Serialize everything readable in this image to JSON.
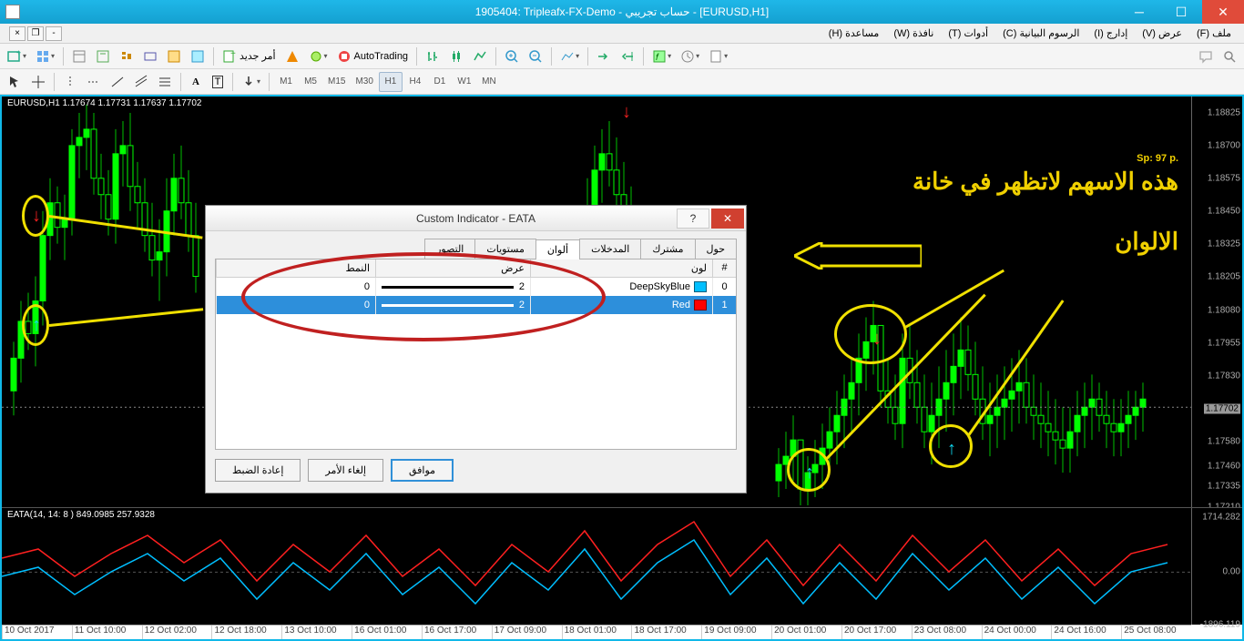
{
  "window": {
    "title": "1905404: Tripleafx-FX-Demo - حساب تجريبي - [EURUSD,H1]"
  },
  "menu": {
    "items": [
      "ملف (F)",
      "عرض (V)",
      "إدارج (I)",
      "الرسوم البيانية (C)",
      "أدوات (T)",
      "نافذة (W)",
      "مساعدة (H)"
    ]
  },
  "toolbar1": {
    "new_order": "أمر جديد",
    "autotrading": "AutoTrading"
  },
  "toolbar2": {
    "timeframes": [
      "M1",
      "M5",
      "M15",
      "M30",
      "H1",
      "H4",
      "D1",
      "W1",
      "MN"
    ],
    "active_tf": "H1"
  },
  "chart": {
    "label": "EURUSD,H1  1.17674 1.17731 1.17637 1.17702",
    "sp": "Sp: 97 p.",
    "y_ticks": [
      {
        "v": "1.18825",
        "p": 4
      },
      {
        "v": "1.18700",
        "p": 12
      },
      {
        "v": "1.18575",
        "p": 20
      },
      {
        "v": "1.18450",
        "p": 28
      },
      {
        "v": "1.18325",
        "p": 36
      },
      {
        "v": "1.18205",
        "p": 44
      },
      {
        "v": "1.18080",
        "p": 52
      },
      {
        "v": "1.17955",
        "p": 60
      },
      {
        "v": "1.17830",
        "p": 68
      },
      {
        "v": "1.17702",
        "p": 76,
        "current": true
      },
      {
        "v": "1.17580",
        "p": 84
      },
      {
        "v": "1.17460",
        "p": 90
      },
      {
        "v": "1.17335",
        "p": 95
      },
      {
        "v": "1.17210",
        "p": 100
      }
    ],
    "x_ticks": [
      "10 Oct 2017",
      "11 Oct 10:00",
      "12 Oct 02:00",
      "12 Oct 18:00",
      "13 Oct 10:00",
      "16 Oct 01:00",
      "16 Oct 17:00",
      "17 Oct 09:00",
      "18 Oct 01:00",
      "18 Oct 17:00",
      "19 Oct 09:00",
      "20 Oct 01:00",
      "20 Oct 17:00",
      "23 Oct 08:00",
      "24 Oct 00:00",
      "24 Oct 16:00",
      "25 Oct 08:00"
    ],
    "annot1": "هذه الاسهم لاتظهر في خانة",
    "annot2": "الالوان"
  },
  "indicator": {
    "label": "EATA(14, 14: 8 ) 849.0985 257.9328",
    "y_ticks": [
      {
        "v": "1714.282",
        "p": 8
      },
      {
        "v": "0.00",
        "p": 55
      },
      {
        "v": "-1896.119",
        "p": 100
      }
    ]
  },
  "dialog": {
    "title": "Custom Indicator - EATA",
    "tabs": [
      "حول",
      "مشترك",
      "المدخلات",
      "ألوان",
      "مستويات",
      "التصور"
    ],
    "active_tab": "ألوان",
    "head_num": "#",
    "head_color": "لون",
    "head_width": "عرض",
    "head_style": "النمط",
    "rows": [
      {
        "n": "0",
        "name": "DeepSkyBlue",
        "hex": "#00bfff",
        "w": "2",
        "s": "0"
      },
      {
        "n": "1",
        "name": "Red",
        "hex": "#ff0000",
        "w": "2",
        "s": "0",
        "sel": true
      }
    ],
    "btn_ok": "موافق",
    "btn_cancel": "إلغاء الأمر",
    "btn_reset": "إعادة الضبط"
  },
  "candles": {
    "up_color": "#00ff00",
    "down_color": "#00a000",
    "wick_color": "#00c000",
    "series": [
      {
        "x": 10,
        "o": 72,
        "h": 60,
        "l": 78,
        "c": 64
      },
      {
        "x": 18,
        "o": 64,
        "h": 50,
        "l": 70,
        "c": 55
      },
      {
        "x": 26,
        "o": 55,
        "h": 48,
        "l": 62,
        "c": 58
      },
      {
        "x": 34,
        "o": 58,
        "h": 44,
        "l": 66,
        "c": 50
      },
      {
        "x": 42,
        "o": 50,
        "h": 28,
        "l": 56,
        "c": 34
      },
      {
        "x": 50,
        "o": 34,
        "h": 20,
        "l": 40,
        "c": 26
      },
      {
        "x": 58,
        "o": 26,
        "h": 22,
        "l": 36,
        "c": 32
      },
      {
        "x": 66,
        "o": 32,
        "h": 24,
        "l": 40,
        "c": 30
      },
      {
        "x": 74,
        "o": 30,
        "h": 8,
        "l": 34,
        "c": 12
      },
      {
        "x": 82,
        "o": 12,
        "h": 4,
        "l": 20,
        "c": 10
      },
      {
        "x": 90,
        "o": 10,
        "h": 2,
        "l": 18,
        "c": 8
      },
      {
        "x": 98,
        "o": 8,
        "h": 4,
        "l": 24,
        "c": 20
      },
      {
        "x": 106,
        "o": 20,
        "h": 14,
        "l": 30,
        "c": 24
      },
      {
        "x": 114,
        "o": 24,
        "h": 18,
        "l": 34,
        "c": 30
      },
      {
        "x": 122,
        "o": 30,
        "h": 8,
        "l": 36,
        "c": 14
      },
      {
        "x": 130,
        "o": 14,
        "h": 6,
        "l": 22,
        "c": 12
      },
      {
        "x": 138,
        "o": 12,
        "h": 4,
        "l": 28,
        "c": 22
      },
      {
        "x": 146,
        "o": 22,
        "h": 16,
        "l": 32,
        "c": 26
      },
      {
        "x": 154,
        "o": 26,
        "h": 20,
        "l": 38,
        "c": 34
      },
      {
        "x": 162,
        "o": 34,
        "h": 26,
        "l": 44,
        "c": 40
      },
      {
        "x": 170,
        "o": 40,
        "h": 30,
        "l": 50,
        "c": 38
      },
      {
        "x": 178,
        "o": 38,
        "h": 20,
        "l": 44,
        "c": 28
      },
      {
        "x": 186,
        "o": 28,
        "h": 14,
        "l": 34,
        "c": 20
      },
      {
        "x": 194,
        "o": 20,
        "h": 12,
        "l": 30,
        "c": 26
      },
      {
        "x": 202,
        "o": 26,
        "h": 18,
        "l": 38,
        "c": 34
      },
      {
        "x": 210,
        "o": 34,
        "h": 26,
        "l": 48,
        "c": 44
      },
      {
        "x": 640,
        "o": 40,
        "h": 20,
        "l": 48,
        "c": 28
      },
      {
        "x": 648,
        "o": 28,
        "h": 12,
        "l": 36,
        "c": 18
      },
      {
        "x": 656,
        "o": 18,
        "h": 8,
        "l": 26,
        "c": 14
      },
      {
        "x": 664,
        "o": 14,
        "h": 6,
        "l": 22,
        "c": 18
      },
      {
        "x": 672,
        "o": 18,
        "h": 10,
        "l": 28,
        "c": 24
      },
      {
        "x": 680,
        "o": 24,
        "h": 16,
        "l": 34,
        "c": 30
      },
      {
        "x": 688,
        "o": 30,
        "h": 22,
        "l": 42,
        "c": 38
      },
      {
        "x": 850,
        "o": 94,
        "h": 86,
        "l": 98,
        "c": 90
      },
      {
        "x": 858,
        "o": 90,
        "h": 82,
        "l": 96,
        "c": 88
      },
      {
        "x": 866,
        "o": 88,
        "h": 78,
        "l": 94,
        "c": 84
      },
      {
        "x": 874,
        "o": 84,
        "h": 90,
        "l": 100,
        "c": 96
      },
      {
        "x": 882,
        "o": 96,
        "h": 88,
        "l": 100,
        "c": 92
      },
      {
        "x": 890,
        "o": 92,
        "h": 84,
        "l": 98,
        "c": 90
      },
      {
        "x": 898,
        "o": 90,
        "h": 80,
        "l": 96,
        "c": 86
      },
      {
        "x": 906,
        "o": 86,
        "h": 76,
        "l": 92,
        "c": 82
      },
      {
        "x": 914,
        "o": 82,
        "h": 72,
        "l": 90,
        "c": 78
      },
      {
        "x": 922,
        "o": 78,
        "h": 68,
        "l": 86,
        "c": 74
      },
      {
        "x": 930,
        "o": 74,
        "h": 64,
        "l": 82,
        "c": 70
      },
      {
        "x": 938,
        "o": 70,
        "h": 58,
        "l": 78,
        "c": 64
      },
      {
        "x": 946,
        "o": 64,
        "h": 54,
        "l": 72,
        "c": 60
      },
      {
        "x": 954,
        "o": 60,
        "h": 50,
        "l": 68,
        "c": 56
      },
      {
        "x": 962,
        "o": 56,
        "h": 60,
        "l": 76,
        "c": 72
      },
      {
        "x": 970,
        "o": 72,
        "h": 64,
        "l": 80,
        "c": 76
      },
      {
        "x": 978,
        "o": 76,
        "h": 68,
        "l": 84,
        "c": 80
      },
      {
        "x": 986,
        "o": 80,
        "h": 58,
        "l": 86,
        "c": 64
      },
      {
        "x": 994,
        "o": 64,
        "h": 56,
        "l": 74,
        "c": 70
      },
      {
        "x": 1002,
        "o": 70,
        "h": 62,
        "l": 80,
        "c": 76
      },
      {
        "x": 1010,
        "o": 76,
        "h": 68,
        "l": 86,
        "c": 82
      },
      {
        "x": 1018,
        "o": 82,
        "h": 70,
        "l": 90,
        "c": 78
      },
      {
        "x": 1026,
        "o": 78,
        "h": 66,
        "l": 86,
        "c": 74
      },
      {
        "x": 1034,
        "o": 74,
        "h": 62,
        "l": 82,
        "c": 70
      },
      {
        "x": 1042,
        "o": 70,
        "h": 58,
        "l": 78,
        "c": 66
      },
      {
        "x": 1050,
        "o": 66,
        "h": 54,
        "l": 74,
        "c": 62
      },
      {
        "x": 1058,
        "o": 62,
        "h": 56,
        "l": 72,
        "c": 68
      },
      {
        "x": 1066,
        "o": 68,
        "h": 60,
        "l": 78,
        "c": 74
      },
      {
        "x": 1074,
        "o": 74,
        "h": 66,
        "l": 84,
        "c": 80
      },
      {
        "x": 1082,
        "o": 80,
        "h": 70,
        "l": 88,
        "c": 78
      },
      {
        "x": 1090,
        "o": 78,
        "h": 68,
        "l": 86,
        "c": 76
      },
      {
        "x": 1098,
        "o": 76,
        "h": 66,
        "l": 84,
        "c": 74
      },
      {
        "x": 1106,
        "o": 74,
        "h": 64,
        "l": 82,
        "c": 72
      },
      {
        "x": 1114,
        "o": 72,
        "h": 62,
        "l": 80,
        "c": 70
      },
      {
        "x": 1122,
        "o": 70,
        "h": 64,
        "l": 80,
        "c": 76
      },
      {
        "x": 1130,
        "o": 76,
        "h": 68,
        "l": 84,
        "c": 78
      },
      {
        "x": 1138,
        "o": 78,
        "h": 70,
        "l": 86,
        "c": 80
      },
      {
        "x": 1146,
        "o": 80,
        "h": 72,
        "l": 88,
        "c": 82
      },
      {
        "x": 1154,
        "o": 82,
        "h": 74,
        "l": 90,
        "c": 84
      },
      {
        "x": 1162,
        "o": 84,
        "h": 76,
        "l": 92,
        "c": 86
      },
      {
        "x": 1170,
        "o": 86,
        "h": 76,
        "l": 92,
        "c": 82
      },
      {
        "x": 1178,
        "o": 82,
        "h": 72,
        "l": 88,
        "c": 78
      },
      {
        "x": 1186,
        "o": 78,
        "h": 70,
        "l": 86,
        "c": 76
      },
      {
        "x": 1194,
        "o": 76,
        "h": 68,
        "l": 84,
        "c": 74
      },
      {
        "x": 1202,
        "o": 74,
        "h": 70,
        "l": 82,
        "c": 78
      },
      {
        "x": 1210,
        "o": 78,
        "h": 72,
        "l": 86,
        "c": 80
      },
      {
        "x": 1218,
        "o": 80,
        "h": 74,
        "l": 88,
        "c": 82
      },
      {
        "x": 1226,
        "o": 82,
        "h": 74,
        "l": 88,
        "c": 80
      },
      {
        "x": 1234,
        "o": 80,
        "h": 72,
        "l": 86,
        "c": 78
      },
      {
        "x": 1242,
        "o": 78,
        "h": 72,
        "l": 84,
        "c": 76
      },
      {
        "x": 1250,
        "o": 76,
        "h": 70,
        "l": 82,
        "c": 74
      }
    ]
  },
  "ind_lines": {
    "red_color": "#ff2020",
    "blue_color": "#00bfff",
    "red": "0,55 40,45 80,75 120,50 160,30 200,60 240,35 280,80 320,40 360,70 400,30 440,75 480,45 520,85 560,40 600,70 640,25 680,80 720,40 760,15 800,75 840,35 880,85 920,40 960,80 1000,30 1040,70 1080,35 1120,80 1160,45 1200,85 1240,50 1280,40",
    "blue": "0,75 40,65 80,95 120,70 160,50 200,80 240,55 280,100 320,60 360,90 400,50 440,95 480,65 520,105 560,60 600,90 640,45 680,100 720,60 760,35 800,95 840,55 880,105 920,60 960,100 1000,50 1040,90 1080,55 1120,100 1160,65 1200,105 1240,70 1280,60"
  }
}
